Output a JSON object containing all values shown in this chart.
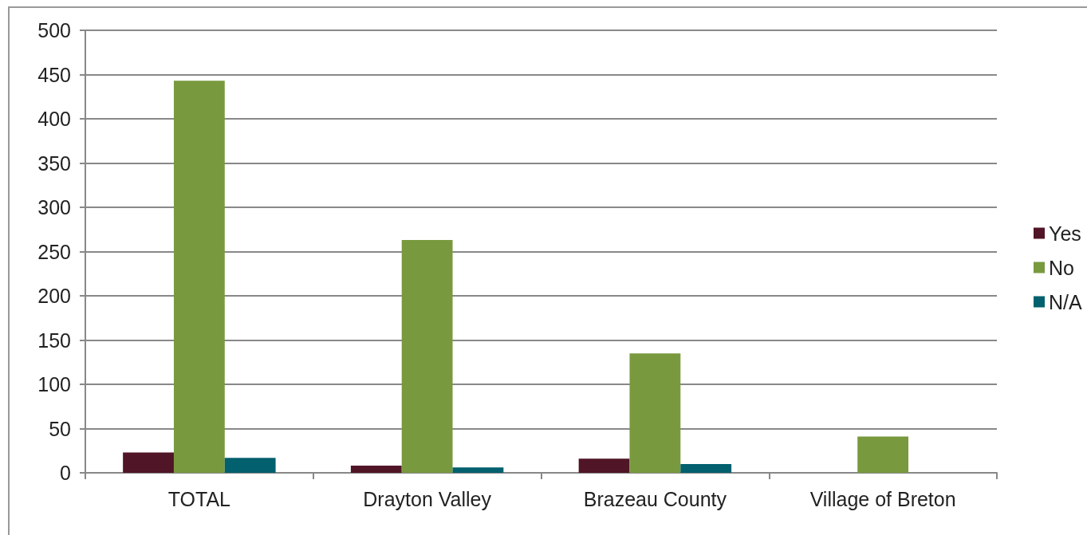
{
  "chart_data": {
    "type": "bar",
    "categories": [
      "TOTAL",
      "Drayton Valley",
      "Brazeau County",
      "Village of Breton"
    ],
    "series": [
      {
        "name": "Yes",
        "color": "#501526",
        "values": [
          23,
          8,
          16,
          null
        ]
      },
      {
        "name": "No",
        "color": "#79993f",
        "values": [
          443,
          263,
          135,
          41
        ]
      },
      {
        "name": "N/A",
        "color": "#03606e",
        "values": [
          17,
          6,
          10,
          null
        ]
      }
    ],
    "ylim": [
      0,
      500
    ],
    "yticks": [
      0,
      50,
      100,
      150,
      200,
      250,
      300,
      350,
      400,
      450,
      500
    ],
    "grid": "y",
    "legend": "right"
  }
}
